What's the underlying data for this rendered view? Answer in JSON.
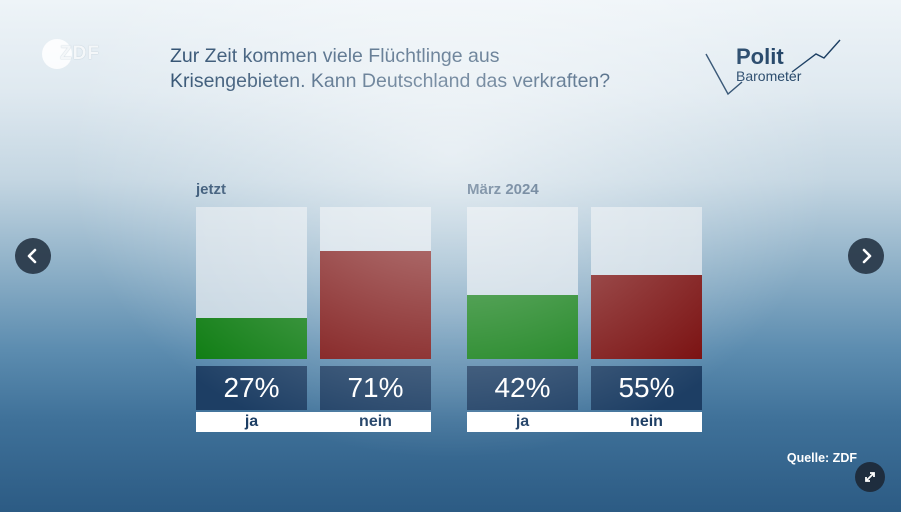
{
  "header": {
    "logo_text": "ZDF",
    "title_line1": "Zur Zeit kommen viele Flüchtlinge aus",
    "title_line2": "Krisengebieten. Kann Deutschland das verkraften?",
    "brand_line1": "Polit",
    "brand_line2": "Barometer"
  },
  "chart_data": {
    "type": "bar",
    "title": "Zur Zeit kommen viele Flüchtlinge aus Krisengebieten. Kann Deutschland das verkraften?",
    "unit": "%",
    "ylim": [
      0,
      100
    ],
    "groups": [
      {
        "label": "jetzt",
        "bars": [
          {
            "category": "ja",
            "value": 27,
            "label": "27%",
            "color": "#0a7a0e"
          },
          {
            "category": "nein",
            "value": 71,
            "label": "71%",
            "color": "#770b0b"
          }
        ]
      },
      {
        "label": "März 2024",
        "bars": [
          {
            "category": "ja",
            "value": 42,
            "label": "42%",
            "color": "#0a7a0e"
          },
          {
            "category": "nein",
            "value": 55,
            "label": "55%",
            "color": "#770b0b"
          }
        ]
      }
    ]
  },
  "footer": {
    "source": "Quelle: ZDF"
  },
  "controls": {
    "prev_icon": "chevron-left-icon",
    "next_icon": "chevron-right-icon",
    "expand_icon": "expand-icon"
  },
  "colors": {
    "title": "#1c3f63",
    "ja": "#0a7a0e",
    "nein": "#770b0b",
    "label_box": "#1d3e64"
  }
}
